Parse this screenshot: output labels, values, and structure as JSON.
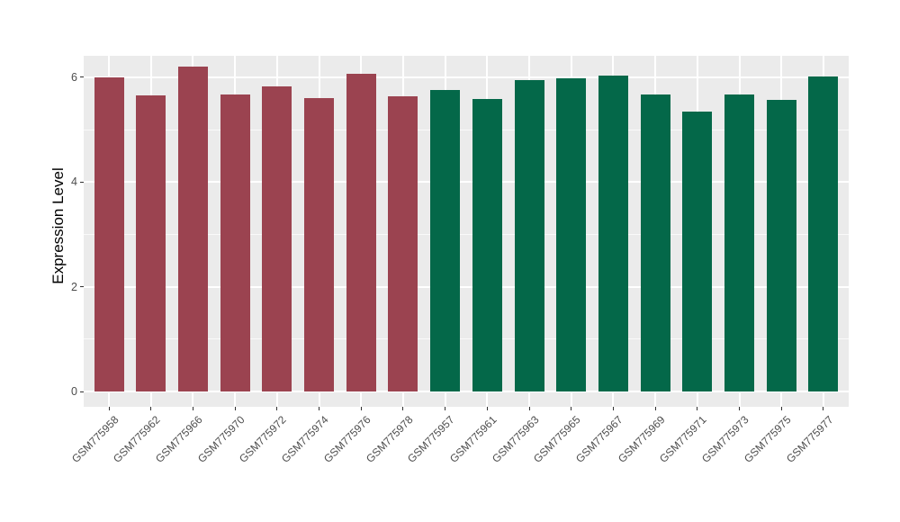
{
  "chart_data": {
    "type": "bar",
    "ylabel": "Expression Level",
    "xlabel": "",
    "ylim": [
      -0.29,
      6.41
    ],
    "yticks": [
      0,
      2,
      4,
      6
    ],
    "yticks_minor": [
      1,
      3,
      5
    ],
    "grid": "on",
    "legend_position": "none",
    "panel_background": "#EBEBEB",
    "gridline_color": "#FFFFFF",
    "axis_text_color": "#4D4D4D",
    "axis_title_color": "#000000",
    "group_colors": {
      "maroon": "#9B4350",
      "green": "#046849"
    },
    "categories": [
      "GSM775958",
      "GSM775962",
      "GSM775966",
      "GSM775970",
      "GSM775972",
      "GSM775974",
      "GSM775976",
      "GSM775978",
      "GSM775957",
      "GSM775961",
      "GSM775963",
      "GSM775965",
      "GSM775967",
      "GSM775969",
      "GSM775971",
      "GSM775973",
      "GSM775975",
      "GSM775977"
    ],
    "values": [
      6.0,
      5.65,
      6.21,
      5.68,
      5.82,
      5.6,
      6.07,
      5.64,
      5.76,
      5.59,
      5.95,
      5.99,
      6.04,
      5.68,
      5.34,
      5.68,
      5.57,
      6.01
    ],
    "bar_groups": [
      "maroon",
      "maroon",
      "maroon",
      "maroon",
      "maroon",
      "maroon",
      "maroon",
      "maroon",
      "green",
      "green",
      "green",
      "green",
      "green",
      "green",
      "green",
      "green",
      "green",
      "green"
    ],
    "series": [
      {
        "name": "maroon-group",
        "color": "#9B4350",
        "categories": [
          "GSM775958",
          "GSM775962",
          "GSM775966",
          "GSM775970",
          "GSM775972",
          "GSM775974",
          "GSM775976",
          "GSM775978"
        ],
        "values": [
          6.0,
          5.65,
          6.21,
          5.68,
          5.82,
          5.6,
          6.07,
          5.64
        ]
      },
      {
        "name": "green-group",
        "color": "#046849",
        "categories": [
          "GSM775957",
          "GSM775961",
          "GSM775963",
          "GSM775965",
          "GSM775967",
          "GSM775969",
          "GSM775971",
          "GSM775973",
          "GSM775975",
          "GSM775977"
        ],
        "values": [
          5.76,
          5.59,
          5.95,
          5.99,
          6.04,
          5.68,
          5.34,
          5.68,
          5.57,
          6.01
        ]
      }
    ]
  }
}
